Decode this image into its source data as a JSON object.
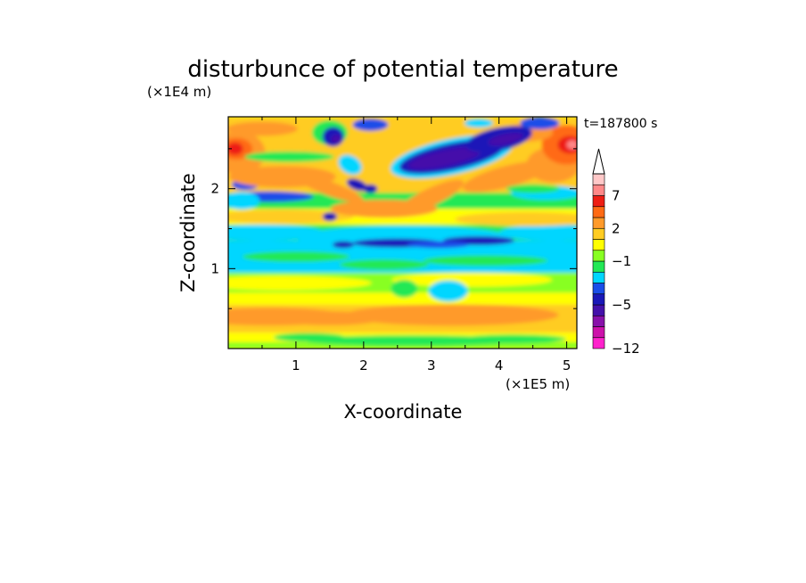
{
  "chart_data": {
    "type": "heatmap",
    "title": "disturbunce of potential temperature",
    "xlabel": "X-coordinate",
    "ylabel": "Z-coordinate",
    "x_unit": "(×1E5 m)",
    "y_unit": "(×1E4 m)",
    "time_label": "t=187800 s",
    "xlim": [
      0,
      5.15
    ],
    "ylim": [
      0,
      2.9
    ],
    "x_ticks": [
      "1",
      "2",
      "3",
      "4",
      "5"
    ],
    "y_ticks": [
      "1",
      "2"
    ],
    "colorbar": {
      "levels": [
        -12,
        -10,
        -8,
        -6,
        -5,
        -4,
        -3,
        -2,
        -1,
        0,
        1,
        2,
        3,
        5,
        7,
        9,
        11
      ],
      "colors": [
        "#ff22cc",
        "#cc11aa",
        "#8811aa",
        "#4411aa",
        "#1a18b8",
        "#1a4ee8",
        "#00d6ff",
        "#22e855",
        "#88ff22",
        "#ffff00",
        "#ffcc22",
        "#ff9a2a",
        "#ff6a14",
        "#ee1e14",
        "#ff8888",
        "#ffc8c8"
      ],
      "tick_labels": [
        "7",
        "2",
        "−1",
        "−5",
        "−12"
      ],
      "extend_top": true
    }
  }
}
